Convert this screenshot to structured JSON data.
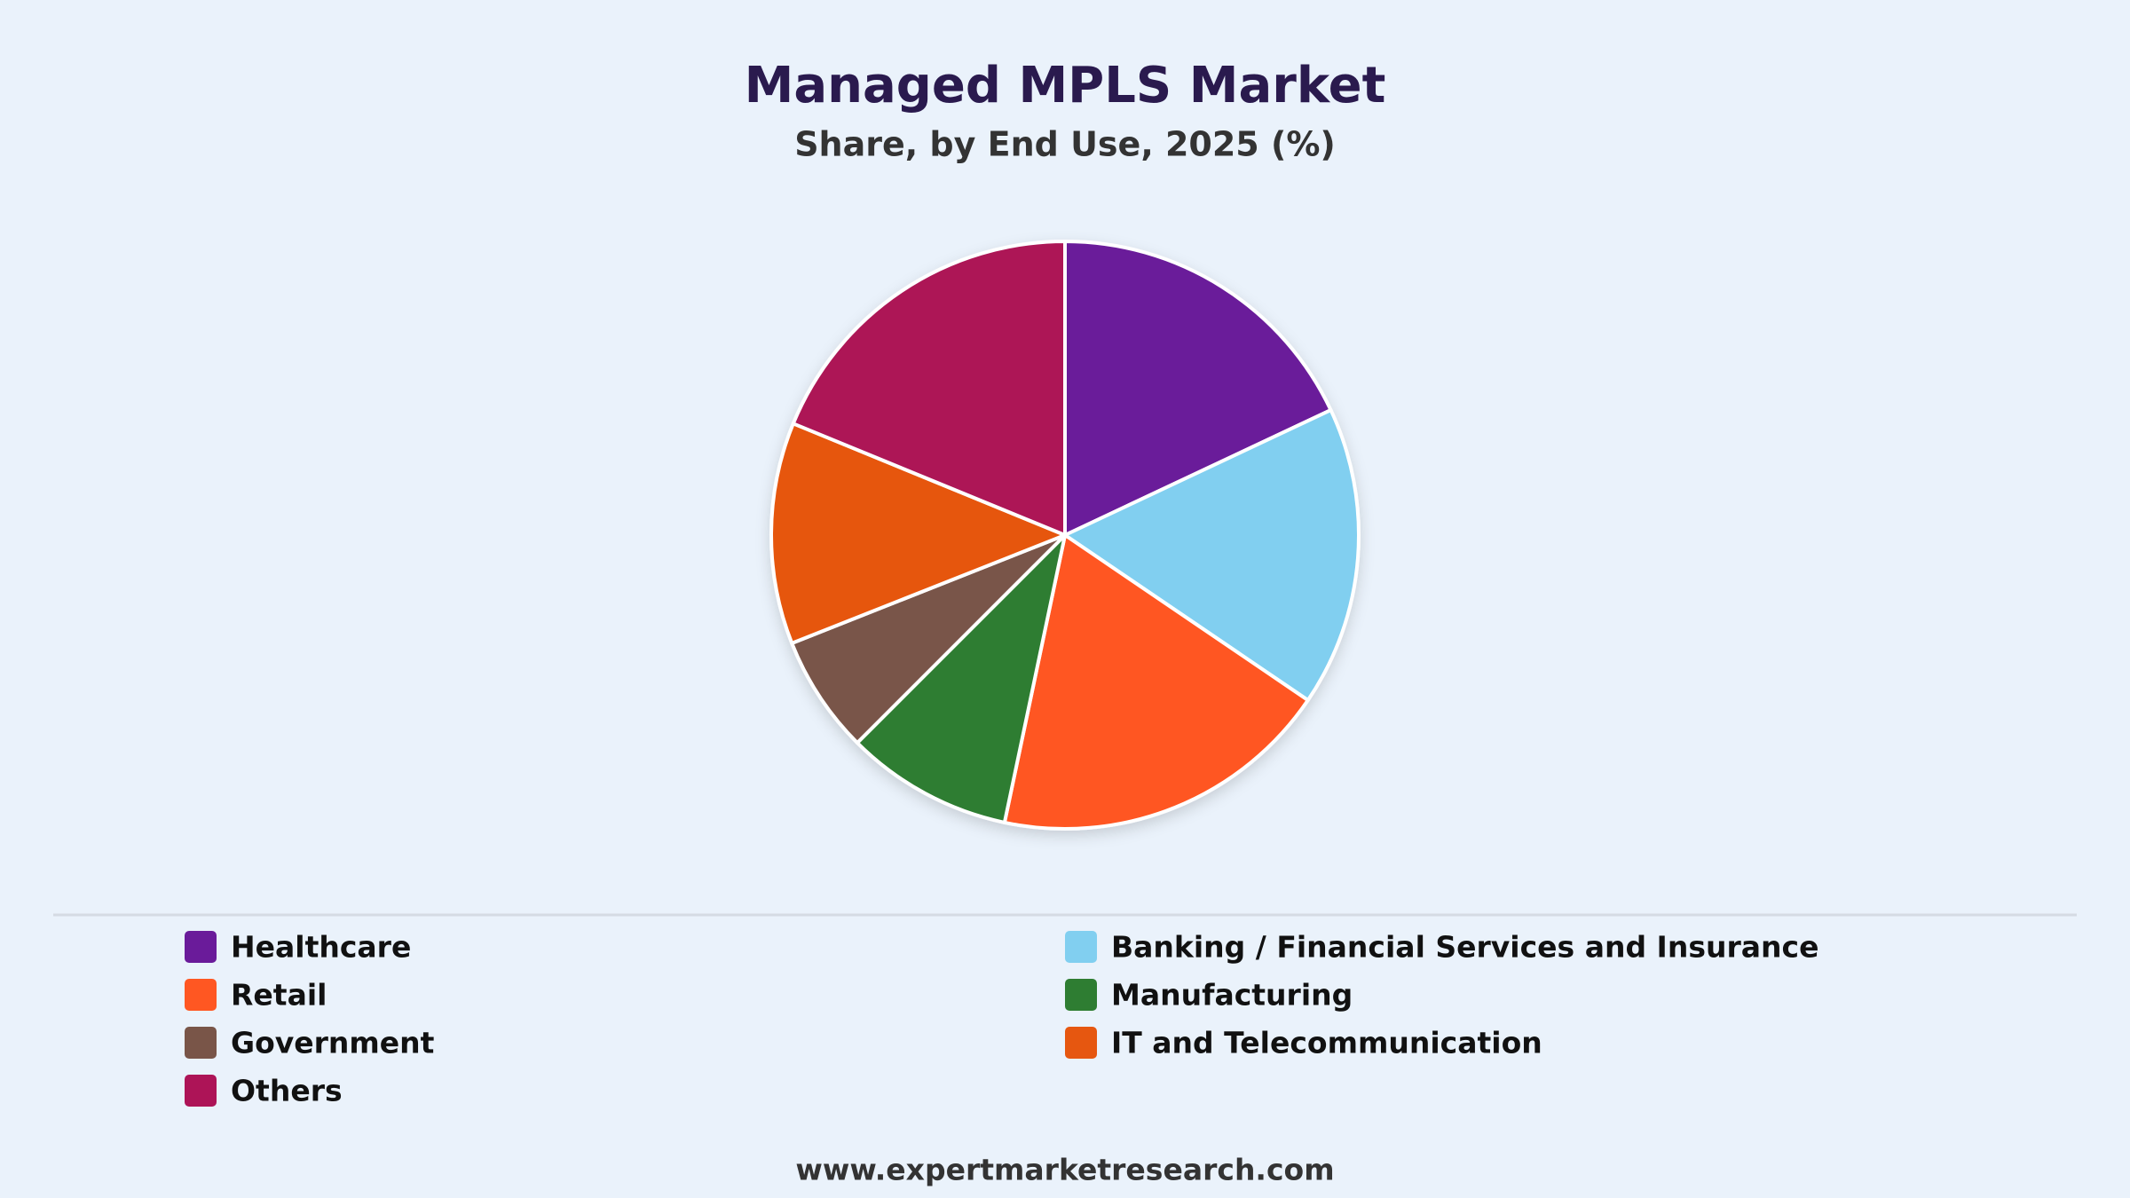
{
  "chart_data": {
    "type": "pie",
    "title": "Managed MPLS Market",
    "subtitle": "Share, by End Use, 2025 (%)",
    "categories": [
      "Healthcare",
      "Banking / Financial Services and Insurance",
      "Retail",
      "Manufacturing",
      "Government",
      "IT and Telecommunication",
      "Others"
    ],
    "values": [
      18,
      16.5,
      18.8,
      9.2,
      6.5,
      12.2,
      18.8
    ],
    "colors": [
      "#6a1b9a",
      "#81cff0",
      "#ff5722",
      "#2e7d32",
      "#795548",
      "#e65710",
      "#ad1457"
    ]
  },
  "footer": "www.expertmarketresearch.com"
}
